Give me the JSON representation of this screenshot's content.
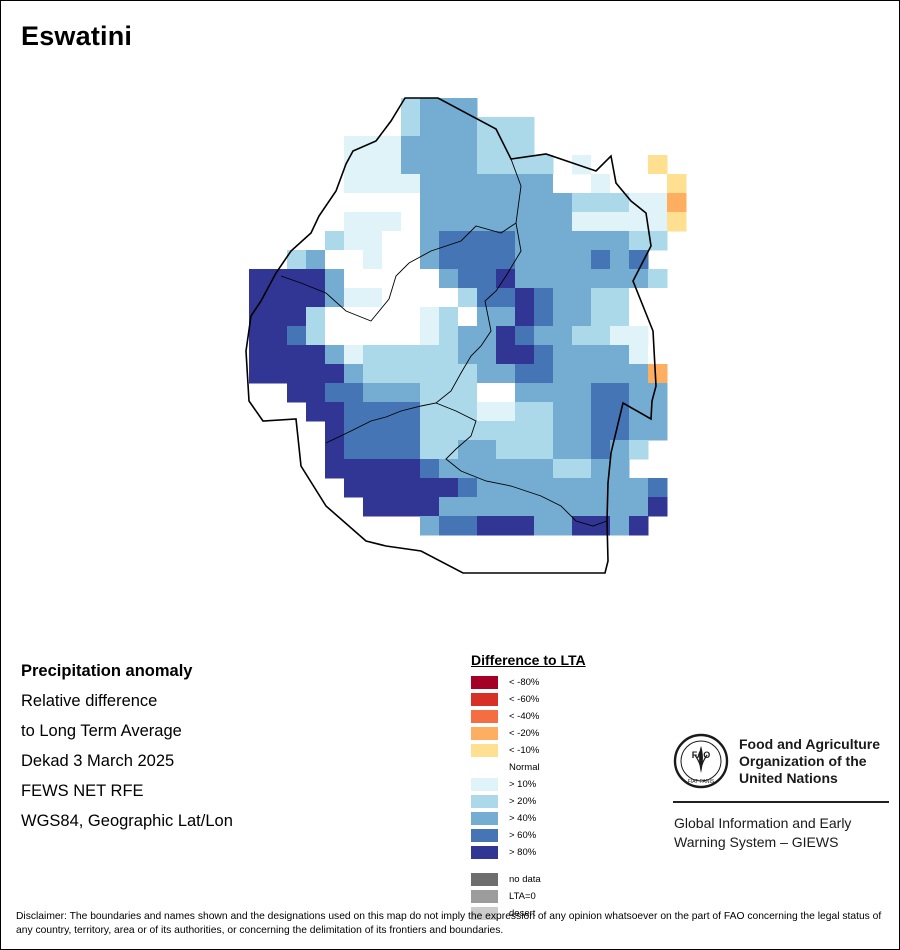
{
  "title": "Eswatini",
  "meta": {
    "line1": "Precipitation anomaly",
    "line2": "Relative difference",
    "line3": "to Long Term Average",
    "line4": "Dekad 3 March 2025",
    "line5": "FEWS NET RFE",
    "line6": "WGS84, Geographic Lat/Lon"
  },
  "legend": {
    "title": "Difference to LTA",
    "items": [
      {
        "label": "< -80%",
        "color": "#a50026"
      },
      {
        "label": "< -60%",
        "color": "#d73027"
      },
      {
        "label": "< -40%",
        "color": "#f46d43"
      },
      {
        "label": "< -20%",
        "color": "#fdae61"
      },
      {
        "label": "< -10%",
        "color": "#fee090"
      },
      {
        "label": "Normal",
        "color": "#ffffff"
      },
      {
        "label": "> 10%",
        "color": "#e0f3f8"
      },
      {
        "label": "> 20%",
        "color": "#abd9e9"
      },
      {
        "label": "> 40%",
        "color": "#74add1"
      },
      {
        "label": "> 60%",
        "color": "#4575b4"
      },
      {
        "label": "> 80%",
        "color": "#313695"
      }
    ],
    "extra": [
      {
        "label": "no data",
        "color": "#6e6e6e"
      },
      {
        "label": "LTA=0",
        "color": "#9c9c9c"
      },
      {
        "label": "desert",
        "color": "#cccccc"
      }
    ]
  },
  "org": {
    "name_line1": "Food and Agriculture",
    "name_line2": "Organization of the",
    "name_line3": "United Nations",
    "system_line1": "Global Information and Early",
    "system_line2": "Warning System – GIEWS",
    "logo_text": "FAO",
    "logo_motto": "FIAT PANIS"
  },
  "disclaimer": "Disclaimer: The boundaries and names shown and the designations used on this map do not imply the expression of any opinion whatsoever on the part of FAO concerning the legal status of any country, territory, area or of its authorities, or concerning the delimitation of its frontiers and boundaries."
}
